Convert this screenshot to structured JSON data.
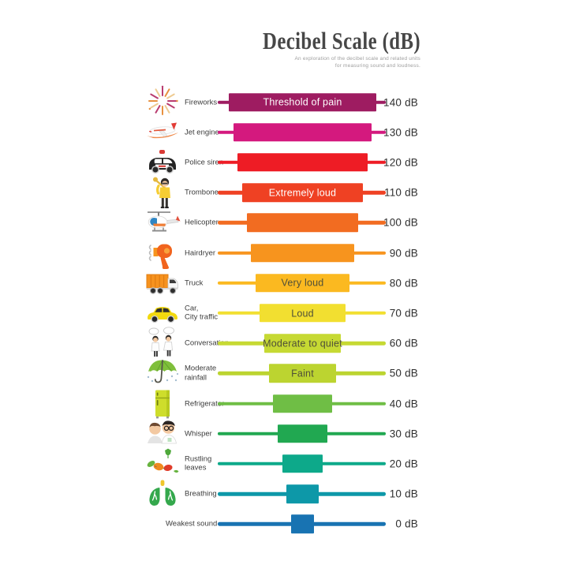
{
  "header": {
    "title": "Decibel Scale (dB)",
    "subtitle_line1": "An exploration of the decibel scale and related units",
    "subtitle_line2": "for measuring sound and loudness."
  },
  "chart_data": {
    "type": "bar",
    "orientation": "horizontal-centered",
    "title": "Decibel Scale (dB)",
    "unit": "dB",
    "axis": {
      "min": 0,
      "max": 140,
      "step": 10
    },
    "rows": [
      {
        "source": "Fireworks",
        "db": 140,
        "value_label": "140 dB",
        "bar_label": "Threshold of pain",
        "bar_label_color": "#ffffff",
        "color": "#9E1C61",
        "icon": "fireworks-icon"
      },
      {
        "source": "Jet engine",
        "db": 130,
        "value_label": "130 dB",
        "bar_label": "",
        "color": "#D4197E",
        "icon": "jet-plane-icon"
      },
      {
        "source": "Police siren",
        "db": 120,
        "value_label": "120 dB",
        "bar_label": "",
        "color": "#EE1C25",
        "icon": "police-car-icon"
      },
      {
        "source": "Trombone",
        "db": 110,
        "value_label": "110 dB",
        "bar_label": "Extremely loud",
        "bar_label_color": "#ffffff",
        "color": "#EF4123",
        "icon": "trombone-player-icon"
      },
      {
        "source": "Helicopter",
        "db": 100,
        "value_label": "100 dB",
        "bar_label": "",
        "color": "#F26C21",
        "icon": "helicopter-icon"
      },
      {
        "source": "Hairdryer",
        "db": 90,
        "value_label": "90 dB",
        "bar_label": "",
        "color": "#F7941E",
        "icon": "hairdryer-icon"
      },
      {
        "source": "Truck",
        "db": 80,
        "value_label": "80 dB",
        "bar_label": "Very loud",
        "bar_label_color": "#4f4f38",
        "color": "#FBB920",
        "icon": "truck-icon"
      },
      {
        "source": "Car,\nCity traffic",
        "db": 70,
        "value_label": "70 dB",
        "bar_label": "Loud",
        "bar_label_color": "#4f4f38",
        "color": "#F2DF30",
        "icon": "car-icon"
      },
      {
        "source": "Conversation",
        "db": 60,
        "value_label": "60 dB",
        "bar_label": "Moderate to quiet",
        "bar_label_color": "#4f4f38",
        "color": "#C6D933",
        "icon": "conversation-icon"
      },
      {
        "source": "Moderate\nrainfall",
        "db": 50,
        "value_label": "50 dB",
        "bar_label": "Faint",
        "bar_label_color": "#4f4f38",
        "color": "#BCD430",
        "icon": "umbrella-icon"
      },
      {
        "source": "Refrigerator",
        "db": 40,
        "value_label": "40 dB",
        "bar_label": "",
        "color": "#6FBE45",
        "icon": "refrigerator-icon"
      },
      {
        "source": "Whisper",
        "db": 30,
        "value_label": "30 dB",
        "bar_label": "",
        "color": "#21A851",
        "icon": "whisper-icon"
      },
      {
        "source": "Rustling\nleaves",
        "db": 20,
        "value_label": "20 dB",
        "bar_label": "",
        "color": "#0DA98A",
        "icon": "autumn-leaves-icon"
      },
      {
        "source": "Breathing",
        "db": 10,
        "value_label": "10 dB",
        "bar_label": "",
        "color": "#0D98A8",
        "icon": "lungs-icon"
      },
      {
        "source": "Weakest sound",
        "db": 0,
        "value_label": "0 dB",
        "bar_label": "",
        "color": "#1873B2",
        "icon": null
      }
    ]
  }
}
